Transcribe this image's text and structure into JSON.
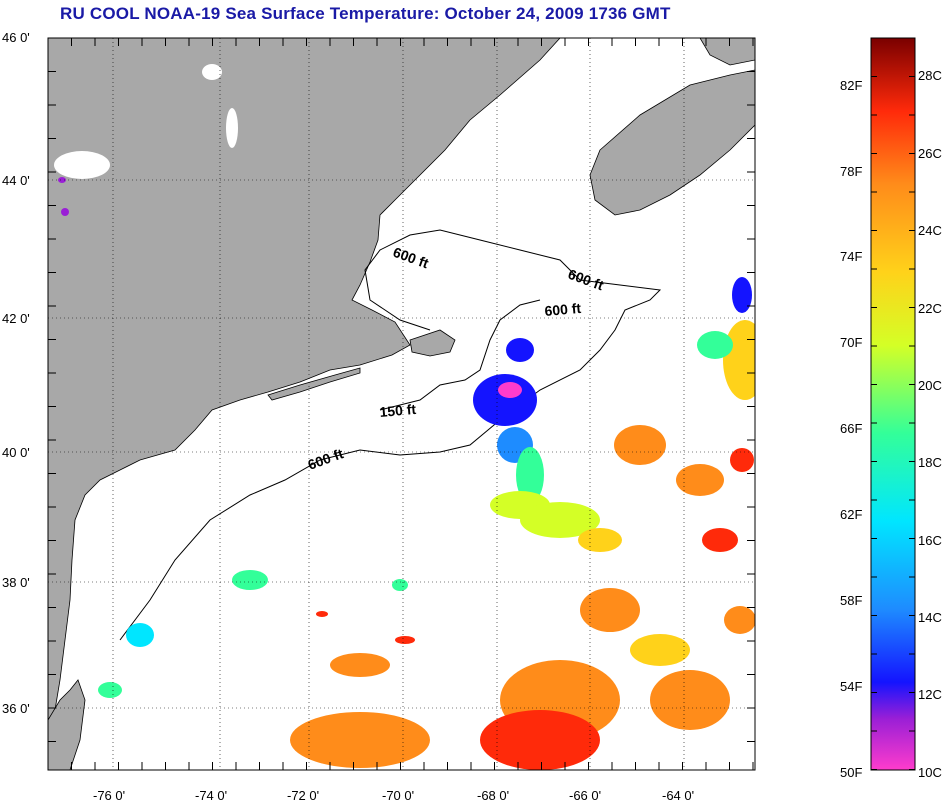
{
  "title": "RU COOL  NOAA-19  Sea Surface Temperature:  October 24, 2009 1736 GMT",
  "map": {
    "lon_range": [
      -77,
      -63
    ],
    "lat_range": [
      35,
      46
    ],
    "lon_ticks": [
      "-76 0'",
      "-74 0'",
      "-72 0'",
      "-70 0'",
      "-68 0'",
      "-66 0'",
      "-64 0'"
    ],
    "lat_ticks": [
      "46 0'",
      "44 0'",
      "42 0'",
      "40 0'",
      "38 0'",
      "36 0'"
    ],
    "gridlines": "dotted",
    "land_color": "#a8a8a8",
    "ocean_color": "#ffffff"
  },
  "depth_labels": [
    "600 ft",
    "600 ft",
    "600 ft",
    "150 ft",
    "600 ft"
  ],
  "colorbar": {
    "celsius_labels": [
      "28C",
      "26C",
      "24C",
      "22C",
      "20C",
      "18C",
      "16C",
      "14C",
      "12C",
      "10C"
    ],
    "fahrenheit_labels": [
      "82F",
      "78F",
      "74F",
      "70F",
      "66F",
      "62F",
      "58F",
      "54F",
      "50F"
    ],
    "colors": [
      "#ff3ccc",
      "#9a1fd6",
      "#1414ff",
      "#1e8cff",
      "#00e6ff",
      "#33ff99",
      "#d4ff26",
      "#ffd21a",
      "#ff8c1a",
      "#ff2a0a",
      "#7a0000"
    ]
  }
}
